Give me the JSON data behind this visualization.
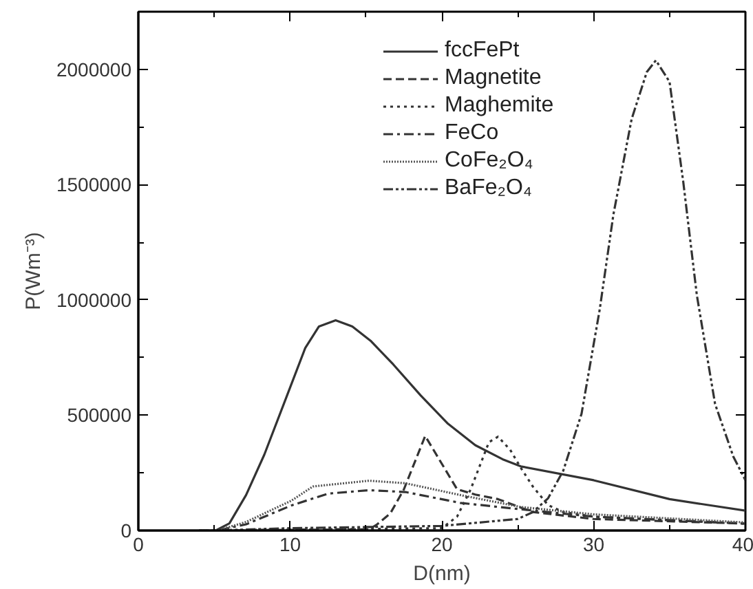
{
  "chart_data": {
    "type": "line",
    "xlabel": "D(nm)",
    "ylabel": "P(Wm⁻³)",
    "xlim": [
      0,
      40
    ],
    "ylim": [
      0,
      2250000
    ],
    "xticks": [
      0,
      10,
      20,
      30,
      40
    ],
    "yticks": [
      0,
      500000,
      1000000,
      1500000,
      2000000
    ],
    "grid": false,
    "legend": "top right",
    "marker": "none",
    "series": [
      {
        "name": "fccFePt",
        "color": "#333333",
        "line_style": "solid",
        "x": [
          4,
          5.1,
          6.0,
          7.1,
          8.3,
          9.8,
          11.0,
          11.9,
          13.0,
          14.1,
          15.3,
          16.8,
          18.6,
          20.4,
          22.2,
          24.0,
          25.2,
          30,
          35,
          40
        ],
        "values": [
          0,
          0,
          31000,
          154000,
          329000,
          586000,
          792000,
          885000,
          912000,
          885000,
          823000,
          720000,
          586000,
          463000,
          370000,
          309000,
          278000,
          218000,
          136000,
          86000
        ]
      },
      {
        "name": "Magnetite",
        "color": "#333333",
        "line_style": "dashed",
        "x": [
          4,
          15.2,
          15.7,
          16.6,
          17.5,
          18.9,
          21.0,
          22.2,
          23.7,
          26,
          30,
          40
        ],
        "values": [
          0,
          5000,
          25000,
          74000,
          179000,
          410000,
          179000,
          156000,
          136000,
          80000,
          50000,
          30000
        ]
      },
      {
        "name": "Maghemite",
        "color": "#333333",
        "line_style": "dotted",
        "x": [
          4,
          20,
          21,
          21.9,
          23.1,
          23.7,
          24.5,
          25.2,
          26,
          27,
          28,
          30,
          40
        ],
        "values": [
          0,
          10000,
          60000,
          179000,
          383000,
          407000,
          350000,
          272000,
          190000,
          110000,
          80000,
          60000,
          30000
        ]
      },
      {
        "name": "FeCo",
        "color": "#333333",
        "line_style": "dashdot",
        "x": [
          4,
          5.2,
          7.1,
          10.1,
          12.5,
          15.2,
          17.6,
          21.2,
          25.2,
          30,
          40
        ],
        "values": [
          0,
          0,
          27000,
          109000,
          160000,
          175000,
          167000,
          120000,
          92000,
          60000,
          30000
        ]
      },
      {
        "name": "CoFe₂O₄",
        "color": "#555555",
        "line_style": "densedot",
        "x": [
          4,
          5.2,
          7.1,
          10.1,
          11.5,
          15.2,
          17.6,
          21.2,
          25.2,
          30,
          40
        ],
        "values": [
          0,
          0,
          37000,
          130000,
          191000,
          216000,
          205000,
          154000,
          102000,
          70000,
          35000
        ]
      },
      {
        "name": "BaFe₂O₄",
        "color": "#333333",
        "line_style": "dashdotdot",
        "x": [
          4,
          5,
          10,
          15,
          20,
          25,
          26,
          27,
          28,
          29.2,
          30.4,
          31.3,
          32.5,
          33.5,
          34.1,
          35.0,
          35.9,
          36.8,
          38.0,
          39.2,
          40
        ],
        "values": [
          0,
          0,
          10000,
          15000,
          20000,
          50000,
          80000,
          140000,
          260000,
          506000,
          959000,
          1370000,
          1784000,
          1988000,
          2039000,
          1946000,
          1514000,
          1020000,
          549000,
          321000,
          218000
        ]
      }
    ]
  }
}
